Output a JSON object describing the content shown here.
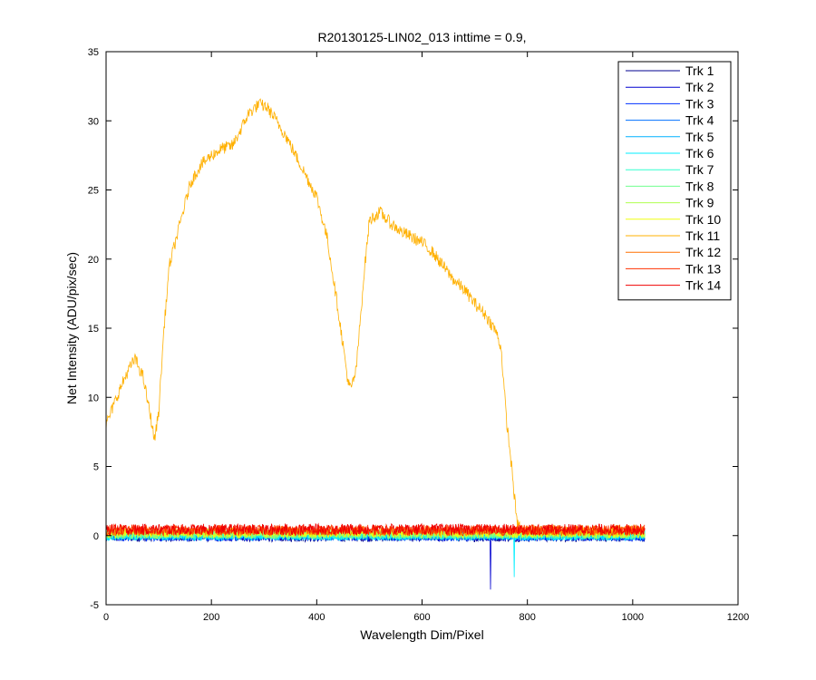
{
  "chart_data": {
    "type": "line",
    "title": "R20130125-LIN02_013 inttime = 0.9,",
    "xlabel": "Wavelength Dim/Pixel",
    "ylabel": "Net Intensity (ADU/pix/sec)",
    "xlim": [
      0,
      1200
    ],
    "ylim": [
      -5,
      35
    ],
    "xticks": [
      0,
      200,
      400,
      600,
      800,
      1000,
      1200
    ],
    "yticks": [
      -5,
      0,
      5,
      10,
      15,
      20,
      25,
      30,
      35
    ],
    "grid": false,
    "legend_position": "top-right",
    "x_range": [
      0,
      1023
    ],
    "series": [
      {
        "name": "Trk 1",
        "color": "#00008f",
        "baseline": -0.1,
        "noise": 0.35,
        "spikes": []
      },
      {
        "name": "Trk 2",
        "color": "#0000cf",
        "baseline": -0.05,
        "noise": 0.35,
        "spikes": [
          {
            "x": 730,
            "y": -3.9
          }
        ]
      },
      {
        "name": "Trk 3",
        "color": "#0030ff",
        "baseline": -0.05,
        "noise": 0.35,
        "spikes": []
      },
      {
        "name": "Trk 4",
        "color": "#0070ff",
        "baseline": 0.0,
        "noise": 0.35,
        "spikes": []
      },
      {
        "name": "Trk 5",
        "color": "#00b0ff",
        "baseline": 0.0,
        "noise": 0.35,
        "spikes": []
      },
      {
        "name": "Trk 6",
        "color": "#00efff",
        "baseline": 0.0,
        "noise": 0.35,
        "spikes": [
          {
            "x": 775,
            "y": -3.0
          }
        ]
      },
      {
        "name": "Trk 7",
        "color": "#30ffcf",
        "baseline": 0.05,
        "noise": 0.35,
        "spikes": []
      },
      {
        "name": "Trk 8",
        "color": "#70ff8f",
        "baseline": 0.1,
        "noise": 0.35,
        "spikes": []
      },
      {
        "name": "Trk 9",
        "color": "#b0ff50",
        "baseline": 0.15,
        "noise": 0.35,
        "spikes": []
      },
      {
        "name": "Trk 10",
        "color": "#efff10",
        "baseline": 0.2,
        "noise": 0.35,
        "spikes": []
      },
      {
        "name": "Trk 11",
        "color": "#ffb000",
        "profile": [
          [
            0,
            8.0
          ],
          [
            20,
            10.0
          ],
          [
            40,
            11.8
          ],
          [
            55,
            12.8
          ],
          [
            70,
            11.5
          ],
          [
            85,
            8.5
          ],
          [
            92,
            6.9
          ],
          [
            100,
            9.0
          ],
          [
            110,
            15.0
          ],
          [
            120,
            19.5
          ],
          [
            140,
            22.5
          ],
          [
            160,
            25.5
          ],
          [
            180,
            26.8
          ],
          [
            200,
            27.5
          ],
          [
            220,
            28.0
          ],
          [
            240,
            28.2
          ],
          [
            255,
            29.3
          ],
          [
            270,
            30.5
          ],
          [
            290,
            31.2
          ],
          [
            305,
            31.0
          ],
          [
            320,
            30.2
          ],
          [
            340,
            29.0
          ],
          [
            360,
            27.5
          ],
          [
            380,
            26.0
          ],
          [
            400,
            24.5
          ],
          [
            420,
            21.5
          ],
          [
            440,
            16.5
          ],
          [
            460,
            11.0
          ],
          [
            465,
            10.6
          ],
          [
            475,
            12.0
          ],
          [
            490,
            19.0
          ],
          [
            500,
            22.8
          ],
          [
            520,
            23.4
          ],
          [
            540,
            22.6
          ],
          [
            560,
            22.0
          ],
          [
            580,
            21.6
          ],
          [
            600,
            21.2
          ],
          [
            620,
            20.5
          ],
          [
            640,
            19.5
          ],
          [
            660,
            18.5
          ],
          [
            680,
            17.8
          ],
          [
            700,
            16.8
          ],
          [
            720,
            16.0
          ],
          [
            740,
            14.8
          ],
          [
            750,
            13.6
          ],
          [
            760,
            8.5
          ],
          [
            770,
            5.0
          ],
          [
            780,
            1.0
          ],
          [
            790,
            0.4
          ],
          [
            900,
            0.4
          ],
          [
            1023,
            0.4
          ]
        ],
        "noise": 0.45
      },
      {
        "name": "Trk 12",
        "color": "#ff7000",
        "baseline": 0.35,
        "noise": 0.35,
        "spikes": []
      },
      {
        "name": "Trk 13",
        "color": "#ff3000",
        "baseline": 0.4,
        "noise": 0.4,
        "spikes": []
      },
      {
        "name": "Trk 14",
        "color": "#ef0000",
        "baseline": 0.45,
        "noise": 0.4,
        "spikes": []
      }
    ]
  }
}
